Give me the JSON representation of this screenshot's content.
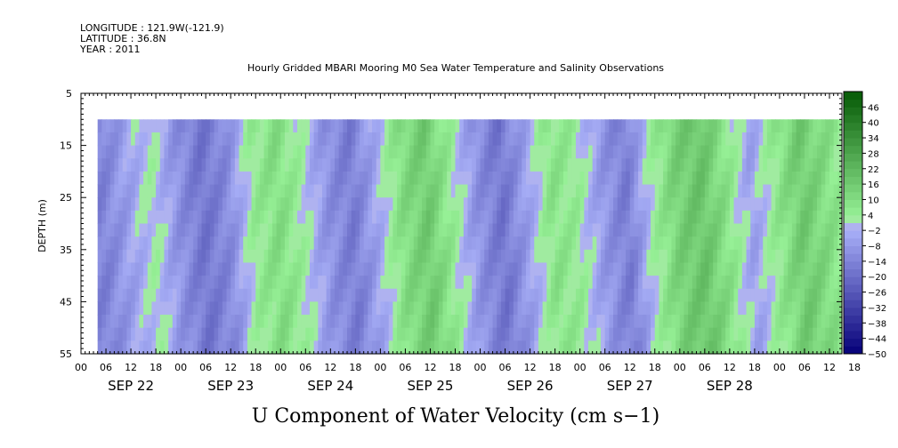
{
  "header": {
    "longitude": "LONGITUDE : 121.9W(-121.9)",
    "latitude": "LATITUDE : 36.8N",
    "year": "YEAR : 2011"
  },
  "chart_data": {
    "type": "heatmap",
    "title": "Hourly Gridded MBARI Mooring M0 Sea Water Temperature and Salinity Observations",
    "xlabel": "U Component of Water Velocity (cm s−1)",
    "ylabel": "DEPTH (m)",
    "y_ticks": [
      5,
      15,
      25,
      35,
      45,
      55
    ],
    "y_range": [
      5,
      55
    ],
    "y_inverted": true,
    "data_depth_range": [
      10,
      55
    ],
    "x_hour_ticks": [
      "00",
      "06",
      "12",
      "18",
      "00",
      "06",
      "12",
      "18",
      "00",
      "06",
      "12",
      "18",
      "00",
      "06",
      "12",
      "18",
      "00",
      "06",
      "12",
      "18",
      "00",
      "06",
      "12",
      "18",
      "00",
      "06",
      "12",
      "18",
      "00",
      "06",
      "12",
      "18"
    ],
    "x_day_labels": [
      "SEP 22",
      "SEP 23",
      "SEP 24",
      "SEP 25",
      "SEP 26",
      "SEP 27",
      "SEP 28"
    ],
    "x_range_hours": [
      0,
      183
    ],
    "data_start_hour": 4,
    "data_end_hour": 183,
    "colorbar": {
      "ticks": [
        46,
        40,
        34,
        28,
        22,
        16,
        10,
        4,
        -2,
        -8,
        -14,
        -20,
        -26,
        -32,
        -38,
        -44,
        -50
      ],
      "range": [
        -50,
        52
      ]
    },
    "series": [
      {
        "profile_hours": [
          4,
          10,
          16,
          22,
          28,
          34,
          40,
          46,
          52,
          58,
          64,
          70,
          76,
          82,
          88,
          94,
          100,
          106,
          112,
          118,
          124,
          130,
          136,
          142,
          148,
          154,
          160,
          166,
          172,
          178,
          183
        ],
        "values": [
          -14,
          -6,
          2,
          -10,
          -18,
          -12,
          4,
          10,
          2,
          -10,
          -16,
          -4,
          10,
          16,
          4,
          -10,
          -18,
          -6,
          8,
          4,
          -8,
          -16,
          2,
          14,
          18,
          8,
          -6,
          6,
          16,
          10,
          4
        ]
      }
    ]
  }
}
